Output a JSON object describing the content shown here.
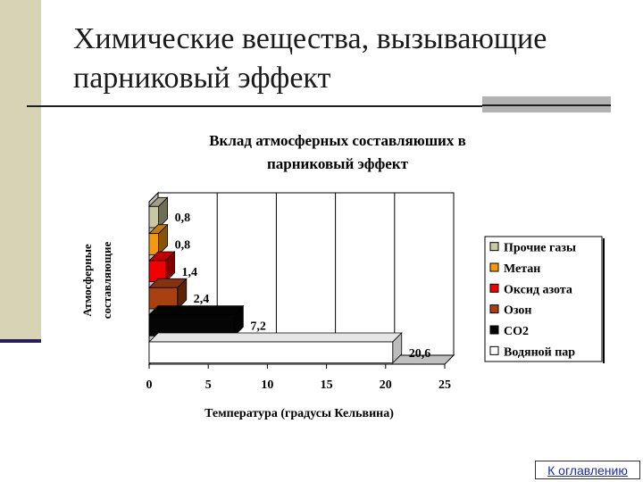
{
  "slide": {
    "title_line1": "Химические вещества, вызывающие",
    "title_line2": "парниковый эффект",
    "toc_link": "К оглавлению"
  },
  "colors": {
    "band": "#d6d4b4",
    "band_line": "#2a1d5c",
    "link": "#1a2aa8"
  },
  "chart_data": {
    "type": "bar",
    "orientation": "horizontal",
    "style": "3d",
    "title_line1": "Вклад атмосферных составляюших в",
    "title_line2": "парниковый эффект",
    "xlabel": "Температура (градусы Кельвина)",
    "ylabel_line1": "Атмосферные",
    "ylabel_line2": "составляющие",
    "xlim": [
      0,
      25
    ],
    "xticks": [
      "0",
      "5",
      "10",
      "15",
      "20",
      "25"
    ],
    "grid": true,
    "legend_position": "right",
    "series": [
      {
        "name": "Прочие газы",
        "value": 0.8,
        "label": "0,8",
        "color": "#c8c8a4"
      },
      {
        "name": "Метан",
        "value": 0.8,
        "label": "0,8",
        "color": "#f59a10"
      },
      {
        "name": "Оксид азота",
        "value": 1.4,
        "label": "1,4",
        "color": "#f00000"
      },
      {
        "name": "Озон",
        "value": 2.4,
        "label": "2,4",
        "color": "#a84010"
      },
      {
        "name": "СО2",
        "value": 7.2,
        "label": "7,2",
        "color": "#050505"
      },
      {
        "name": "Водяной пар",
        "value": 20.6,
        "label": "20,6",
        "color": "#ffffff"
      }
    ]
  }
}
